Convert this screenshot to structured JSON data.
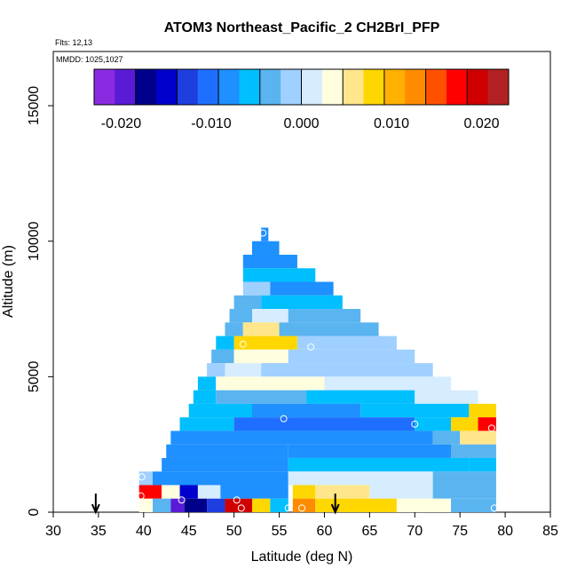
{
  "chart_data": {
    "type": "heatmap",
    "title": "ATOM3 Northeast_Pacific_2 CH2BrI_PFP",
    "flights_text": "Flts: 12,13",
    "mmdd_text": "MMDD: 1025,1027",
    "xlabel": "Latitude (deg N)",
    "ylabel": "Altitude (m)",
    "xlim": [
      30,
      85
    ],
    "ylim": [
      0,
      17000
    ],
    "x_ticks": [
      30,
      35,
      40,
      45,
      50,
      55,
      60,
      65,
      70,
      75,
      80,
      85
    ],
    "y_ticks": [
      0,
      5000,
      10000,
      15000
    ],
    "colorbar": {
      "range": [
        -0.023,
        0.023
      ],
      "ticks": [
        -0.02,
        -0.01,
        0.0,
        0.01,
        0.02
      ],
      "tick_labels": [
        "-0.020",
        "-0.010",
        "0.000",
        "0.010",
        "0.020"
      ],
      "colors": [
        "#8a2be2",
        "#5a1bd6",
        "#00008b",
        "#0000cd",
        "#1e3ee0",
        "#1e6fff",
        "#1e90ff",
        "#00bfff",
        "#5ab4f0",
        "#a0d0ff",
        "#d6ecff",
        "#ffffe0",
        "#ffe68a",
        "#ffd700",
        "#ffb000",
        "#ff8c00",
        "#ff5000",
        "#ff0000",
        "#d00000",
        "#b22222"
      ]
    },
    "cells": [
      {
        "lat0": 53.0,
        "lat1": 53.8,
        "alt0": 10000,
        "alt1": 10500,
        "value": -0.007
      },
      {
        "lat0": 52.0,
        "lat1": 55.0,
        "alt0": 9500,
        "alt1": 10000,
        "value": -0.008
      },
      {
        "lat0": 51.0,
        "lat1": 57.0,
        "alt0": 9000,
        "alt1": 9500,
        "value": -0.007
      },
      {
        "lat0": 51.0,
        "lat1": 59.0,
        "alt0": 8500,
        "alt1": 9000,
        "value": -0.006
      },
      {
        "lat0": 51.0,
        "lat1": 54.0,
        "alt0": 8000,
        "alt1": 8500,
        "value": -0.002
      },
      {
        "lat0": 54.0,
        "lat1": 61.0,
        "alt0": 8000,
        "alt1": 8500,
        "value": -0.007
      },
      {
        "lat0": 50.0,
        "lat1": 53.0,
        "alt0": 7500,
        "alt1": 8000,
        "value": -0.003
      },
      {
        "lat0": 53.0,
        "lat1": 62.0,
        "alt0": 7500,
        "alt1": 8000,
        "value": -0.006
      },
      {
        "lat0": 49.5,
        "lat1": 52.0,
        "alt0": 7000,
        "alt1": 7500,
        "value": -0.004
      },
      {
        "lat0": 52.0,
        "lat1": 56.0,
        "alt0": 7000,
        "alt1": 7500,
        "value": 0.001
      },
      {
        "lat0": 56.0,
        "lat1": 64.0,
        "alt0": 7000,
        "alt1": 7500,
        "value": -0.004
      },
      {
        "lat0": 49.0,
        "lat1": 51.0,
        "alt0": 6500,
        "alt1": 7000,
        "value": -0.004
      },
      {
        "lat0": 51.0,
        "lat1": 55.0,
        "alt0": 6500,
        "alt1": 7000,
        "value": 0.006
      },
      {
        "lat0": 55.0,
        "lat1": 66.0,
        "alt0": 6500,
        "alt1": 7000,
        "value": -0.003
      },
      {
        "lat0": 48.0,
        "lat1": 50.0,
        "alt0": 6000,
        "alt1": 6500,
        "value": -0.005
      },
      {
        "lat0": 50.0,
        "lat1": 57.0,
        "alt0": 6000,
        "alt1": 6500,
        "value": 0.009
      },
      {
        "lat0": 57.0,
        "lat1": 68.0,
        "alt0": 6000,
        "alt1": 6500,
        "value": -0.002
      },
      {
        "lat0": 47.5,
        "lat1": 50.0,
        "alt0": 5500,
        "alt1": 6000,
        "value": -0.004
      },
      {
        "lat0": 50.0,
        "lat1": 56.0,
        "alt0": 5500,
        "alt1": 6000,
        "value": 0.004
      },
      {
        "lat0": 56.0,
        "lat1": 70.0,
        "alt0": 5500,
        "alt1": 6000,
        "value": -0.002
      },
      {
        "lat0": 47.0,
        "lat1": 49.0,
        "alt0": 5000,
        "alt1": 5500,
        "value": -0.002
      },
      {
        "lat0": 49.0,
        "lat1": 53.0,
        "alt0": 5000,
        "alt1": 5500,
        "value": 0.001
      },
      {
        "lat0": 53.0,
        "lat1": 72.0,
        "alt0": 5000,
        "alt1": 5500,
        "value": -0.001
      },
      {
        "lat0": 46.0,
        "lat1": 48.0,
        "alt0": 4500,
        "alt1": 5000,
        "value": -0.006
      },
      {
        "lat0": 48.0,
        "lat1": 60.0,
        "alt0": 4500,
        "alt1": 5000,
        "value": 0.004
      },
      {
        "lat0": 60.0,
        "lat1": 74.0,
        "alt0": 4500,
        "alt1": 5000,
        "value": 0.001
      },
      {
        "lat0": 45.5,
        "lat1": 48.0,
        "alt0": 4000,
        "alt1": 4500,
        "value": -0.006
      },
      {
        "lat0": 48.0,
        "lat1": 58.0,
        "alt0": 4000,
        "alt1": 4500,
        "value": -0.003
      },
      {
        "lat0": 58.0,
        "lat1": 70.0,
        "alt0": 4000,
        "alt1": 4500,
        "value": -0.005
      },
      {
        "lat0": 70.0,
        "lat1": 77.0,
        "alt0": 4000,
        "alt1": 4500,
        "value": 0.001
      },
      {
        "lat0": 45.0,
        "lat1": 52.0,
        "alt0": 3500,
        "alt1": 4000,
        "value": -0.005
      },
      {
        "lat0": 52.0,
        "lat1": 64.0,
        "alt0": 3500,
        "alt1": 4000,
        "value": -0.009
      },
      {
        "lat0": 64.0,
        "lat1": 76.0,
        "alt0": 3500,
        "alt1": 4000,
        "value": -0.006
      },
      {
        "lat0": 76.0,
        "lat1": 79.0,
        "alt0": 3500,
        "alt1": 4000,
        "value": 0.008
      },
      {
        "lat0": 44.0,
        "lat1": 50.0,
        "alt0": 3000,
        "alt1": 3500,
        "value": -0.006
      },
      {
        "lat0": 50.0,
        "lat1": 70.0,
        "alt0": 3000,
        "alt1": 3500,
        "value": -0.011
      },
      {
        "lat0": 70.0,
        "lat1": 74.0,
        "alt0": 3000,
        "alt1": 3500,
        "value": -0.006
      },
      {
        "lat0": 74.0,
        "lat1": 77.0,
        "alt0": 3000,
        "alt1": 3500,
        "value": 0.007
      },
      {
        "lat0": 77.0,
        "lat1": 79.0,
        "alt0": 3000,
        "alt1": 3500,
        "value": 0.018
      },
      {
        "lat0": 43.0,
        "lat1": 52.0,
        "alt0": 2500,
        "alt1": 3000,
        "value": -0.007
      },
      {
        "lat0": 52.0,
        "lat1": 72.0,
        "alt0": 2500,
        "alt1": 3000,
        "value": -0.009
      },
      {
        "lat0": 72.0,
        "lat1": 75.0,
        "alt0": 2500,
        "alt1": 3000,
        "value": -0.004
      },
      {
        "lat0": 75.0,
        "lat1": 79.0,
        "alt0": 2500,
        "alt1": 3000,
        "value": 0.006
      },
      {
        "lat0": 42.5,
        "lat1": 56.0,
        "alt0": 2000,
        "alt1": 2500,
        "value": -0.008
      },
      {
        "lat0": 56.0,
        "lat1": 74.0,
        "alt0": 2000,
        "alt1": 2500,
        "value": -0.008
      },
      {
        "lat0": 74.0,
        "lat1": 79.0,
        "alt0": 2000,
        "alt1": 2500,
        "value": -0.003
      },
      {
        "lat0": 42.0,
        "lat1": 56.0,
        "alt0": 1500,
        "alt1": 2000,
        "value": -0.007
      },
      {
        "lat0": 56.0,
        "lat1": 76.0,
        "alt0": 1500,
        "alt1": 2000,
        "value": -0.005
      },
      {
        "lat0": 76.0,
        "lat1": 79.0,
        "alt0": 1500,
        "alt1": 2000,
        "value": -0.005
      },
      {
        "lat0": 41.0,
        "lat1": 56.0,
        "alt0": 1000,
        "alt1": 1500,
        "value": -0.007
      },
      {
        "lat0": 56.0,
        "lat1": 72.0,
        "alt0": 1000,
        "alt1": 1500,
        "value": 0.0
      },
      {
        "lat0": 72.0,
        "lat1": 79.0,
        "alt0": 1000,
        "alt1": 1500,
        "value": -0.004
      },
      {
        "lat0": 39.5,
        "lat1": 41.0,
        "alt0": 1000,
        "alt1": 1500,
        "value": -0.002
      },
      {
        "lat0": 39.5,
        "lat1": 42.0,
        "alt0": 500,
        "alt1": 1000,
        "value": 0.018
      },
      {
        "lat0": 42.0,
        "lat1": 44.0,
        "alt0": 500,
        "alt1": 1000,
        "value": 0.004
      },
      {
        "lat0": 44.0,
        "lat1": 46.0,
        "alt0": 500,
        "alt1": 1000,
        "value": -0.016
      },
      {
        "lat0": 46.0,
        "lat1": 48.5,
        "alt0": 500,
        "alt1": 1000,
        "value": 0.0
      },
      {
        "lat0": 48.5,
        "lat1": 56.0,
        "alt0": 500,
        "alt1": 1000,
        "value": -0.007
      },
      {
        "lat0": 56.5,
        "lat1": 59.0,
        "alt0": 500,
        "alt1": 1000,
        "value": 0.009
      },
      {
        "lat0": 59.0,
        "lat1": 65.0,
        "alt0": 500,
        "alt1": 1000,
        "value": 0.005
      },
      {
        "lat0": 65.0,
        "lat1": 72.0,
        "alt0": 500,
        "alt1": 1000,
        "value": 0.001
      },
      {
        "lat0": 72.0,
        "lat1": 79.0,
        "alt0": 500,
        "alt1": 1000,
        "value": -0.004
      },
      {
        "lat0": 39.5,
        "lat1": 41.0,
        "alt0": 0,
        "alt1": 500,
        "value": 0.003
      },
      {
        "lat0": 41.0,
        "lat1": 43.0,
        "alt0": 0,
        "alt1": 500,
        "value": -0.004
      },
      {
        "lat0": 43.0,
        "lat1": 44.5,
        "alt0": 0,
        "alt1": 500,
        "value": -0.02
      },
      {
        "lat0": 44.5,
        "lat1": 47.0,
        "alt0": 0,
        "alt1": 500,
        "value": -0.017
      },
      {
        "lat0": 47.0,
        "lat1": 49.0,
        "alt0": 0,
        "alt1": 500,
        "value": -0.013
      },
      {
        "lat0": 49.0,
        "lat1": 52.0,
        "alt0": 0,
        "alt1": 500,
        "value": 0.02
      },
      {
        "lat0": 52.0,
        "lat1": 54.0,
        "alt0": 0,
        "alt1": 500,
        "value": 0.008
      },
      {
        "lat0": 54.0,
        "lat1": 56.0,
        "alt0": 0,
        "alt1": 500,
        "value": -0.006
      },
      {
        "lat0": 56.5,
        "lat1": 59.0,
        "alt0": 0,
        "alt1": 500,
        "value": 0.012
      },
      {
        "lat0": 59.0,
        "lat1": 68.0,
        "alt0": 0,
        "alt1": 500,
        "value": 0.009
      },
      {
        "lat0": 68.0,
        "lat1": 74.0,
        "alt0": 0,
        "alt1": 500,
        "value": 0.004
      },
      {
        "lat0": 74.0,
        "lat1": 79.0,
        "alt0": 0,
        "alt1": 500,
        "value": -0.003
      }
    ],
    "sample_points": [
      {
        "lat": 53.2,
        "alt": 10300
      },
      {
        "lat": 51.0,
        "alt": 6200
      },
      {
        "lat": 58.5,
        "alt": 6100
      },
      {
        "lat": 55.5,
        "alt": 3450
      },
      {
        "lat": 70.0,
        "alt": 3250
      },
      {
        "lat": 78.5,
        "alt": 3100
      },
      {
        "lat": 39.8,
        "alt": 1300
      },
      {
        "lat": 39.7,
        "alt": 600
      },
      {
        "lat": 39.9,
        "alt": 200
      },
      {
        "lat": 44.2,
        "alt": 450
      },
      {
        "lat": 50.3,
        "alt": 450
      },
      {
        "lat": 50.8,
        "alt": 150
      },
      {
        "lat": 56.0,
        "alt": 150
      },
      {
        "lat": 57.5,
        "alt": 150
      },
      {
        "lat": 78.8,
        "alt": 150
      }
    ],
    "arrows": [
      {
        "lat": 34.7
      },
      {
        "lat": 61.2
      }
    ]
  }
}
